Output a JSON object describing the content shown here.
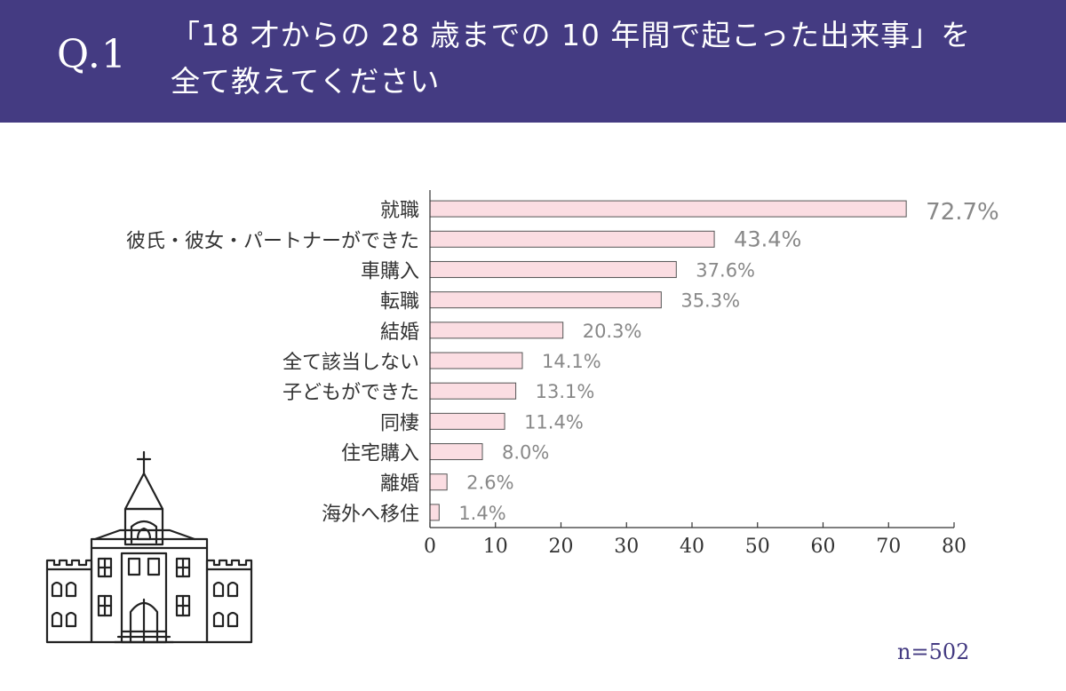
{
  "header": {
    "question_number": "Q.1",
    "question_line1": "「18 才からの 28 歳までの 10 年間で起こった出来事」を",
    "question_line2": "全て教えてください"
  },
  "colors": {
    "header_bg": "#443b82",
    "bar_fill": "#fbdde2",
    "bar_stroke": "#555555",
    "value_label": "#888888",
    "n_label": "#443b82"
  },
  "chart_data": {
    "type": "bar",
    "orientation": "horizontal",
    "categories": [
      "就職",
      "彼氏・彼女・パートナーができた",
      "車購入",
      "転職",
      "結婚",
      "全て該当しない",
      "子どもができた",
      "同棲",
      "住宅購入",
      "離婚",
      "海外へ移住"
    ],
    "values": [
      72.7,
      43.4,
      37.6,
      35.3,
      20.3,
      14.1,
      13.1,
      11.4,
      8.0,
      2.6,
      1.4
    ],
    "value_labels": [
      "72.7%",
      "43.4%",
      "37.6%",
      "35.3%",
      "20.3%",
      "14.1%",
      "13.1%",
      "11.4%",
      "8.0%",
      "2.6%",
      "1.4%"
    ],
    "xlim": [
      0,
      80
    ],
    "x_ticks": [
      0,
      10,
      20,
      30,
      40,
      50,
      60,
      70,
      80
    ],
    "grid": false,
    "title": "",
    "xlabel": "",
    "ylabel": ""
  },
  "sample_size": "n=502",
  "decoration": {
    "icon": "church-icon"
  }
}
